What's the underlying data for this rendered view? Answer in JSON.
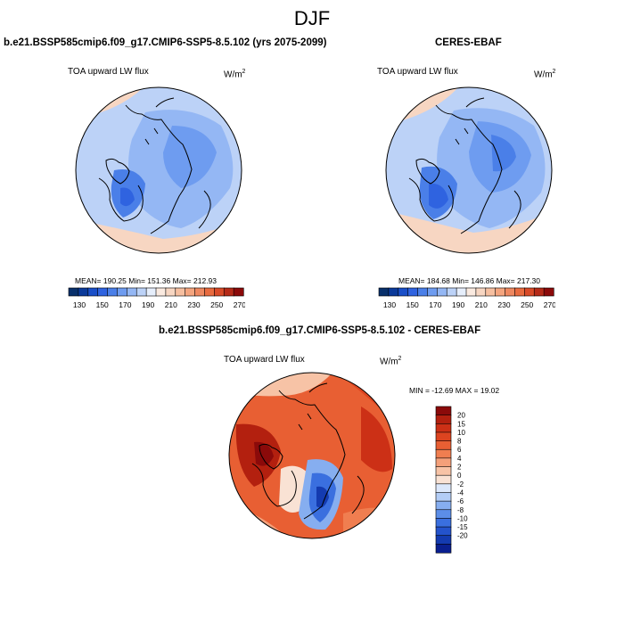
{
  "season": "DJF",
  "colors": {
    "c130": "#08306b",
    "c150": "#1a3fa8",
    "c170": "#2f63e0",
    "c190": "#6e9cf0",
    "c210": "#bcd2f7",
    "c230": "#f7d6c2",
    "c250": "#f4a57f",
    "c270": "#e86b3f",
    "land": "#000000",
    "diffLow": "#0a1f8f",
    "diffHigh": "#8b0a0a"
  },
  "panels": [
    {
      "title": "b.e21.BSSP585cmip6.f09_g17.CMIP6-SSP5-8.5.102 (yrs 2075-2099)",
      "variable": "TOA upward LW flux",
      "units_base": "W/m",
      "units_sup": "2",
      "stats": "MEAN= 190.25   Min= 151.36   Max= 212.93",
      "mean": 190.25,
      "min": 151.36,
      "max": 212.93
    },
    {
      "title": "CERES-EBAF",
      "variable": "TOA upward LW flux",
      "units_base": "W/m",
      "units_sup": "2",
      "stats": "MEAN= 184.68   Min= 146.86   Max= 217.30",
      "mean": 184.68,
      "min": 146.86,
      "max": 217.3
    }
  ],
  "diff": {
    "title": "b.e21.BSSP585cmip6.f09_g17.CMIP6-SSP5-8.5.102 - CERES-EBAF",
    "variable": "TOA upward LW flux",
    "units_base": "W/m",
    "units_sup": "2",
    "stats": "MIN = -12.69 MAX =  19.02",
    "min": -12.69,
    "max": 19.02
  },
  "chart_data": {
    "type": "heatmap",
    "projection": "north polar stereographic",
    "colorbar_horizontal": {
      "ticks": [
        "130",
        "150",
        "170",
        "190",
        "210",
        "230",
        "250",
        "270"
      ],
      "colors": [
        "#08306b",
        "#0b3a9a",
        "#1a4fc8",
        "#2f63e0",
        "#4a7fe8",
        "#6e9cf0",
        "#94b7f4",
        "#bcd2f7",
        "#e6eefb",
        "#faeae0",
        "#f7d6c2",
        "#f6bfa0",
        "#f4a57f",
        "#ee8860",
        "#e86b3f",
        "#d84a28",
        "#b52a18",
        "#8b0a0a"
      ]
    },
    "colorbar_vertical": {
      "ticks": [
        "20",
        "15",
        "10",
        "8",
        "6",
        "4",
        "2",
        "0",
        "-2",
        "-4",
        "-6",
        "-8",
        "-10",
        "-15",
        "-20"
      ],
      "colors": [
        "#8b0a0a",
        "#b3200f",
        "#cc3016",
        "#dd4420",
        "#e85f33",
        "#f07e50",
        "#f4a07a",
        "#f7c3a6",
        "#f9e2d4",
        "#dce8fb",
        "#b3cdf6",
        "#86aef0",
        "#5c8ee8",
        "#3a6fdf",
        "#2453cc",
        "#143bb0",
        "#0a1f8f"
      ]
    }
  }
}
